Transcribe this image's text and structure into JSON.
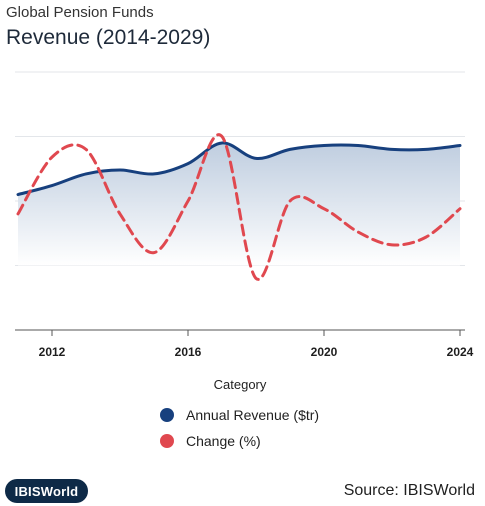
{
  "header": {
    "subtitle": "Global Pension Funds",
    "title": "Revenue (2014-2029)"
  },
  "footer": {
    "logo_text": "IBISWorld",
    "source": "Source: IBISWorld"
  },
  "chart_data": {
    "type": "line",
    "title": "Revenue (2014-2029)",
    "xlabel": "Category",
    "ylabel": "",
    "xlim": [
      2011,
      2024
    ],
    "x_ticks": [
      2012,
      2016,
      2020,
      2024
    ],
    "grid": true,
    "legend_position": "bottom",
    "series": [
      {
        "name": "Annual Revenue ($tr)",
        "color": "#17407e",
        "style": "solid-area",
        "x": [
          2011,
          2012,
          2013,
          2014,
          2015,
          2016,
          2017,
          2018,
          2019,
          2020,
          2021,
          2022,
          2023,
          2024
        ],
        "values": [
          52.5,
          56,
          60.5,
          62,
          60.5,
          64.5,
          72.5,
          66.5,
          70,
          71.5,
          71.5,
          70,
          70,
          71.5
        ]
      },
      {
        "name": "Change (%)",
        "color": "#e0484f",
        "style": "dashed",
        "x": [
          2011,
          2012,
          2013,
          2014,
          2015,
          2016,
          2017,
          2018,
          2019,
          2020,
          2021,
          2022,
          2023,
          2024
        ],
        "values": [
          45,
          67,
          70,
          45,
          30,
          50,
          75,
          20,
          50,
          47,
          38,
          33,
          36,
          47
        ]
      }
    ]
  }
}
